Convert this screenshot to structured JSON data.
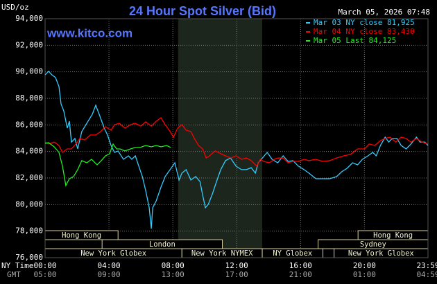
{
  "chart_data": {
    "type": "line",
    "title": "24 Hour Spot Silver (Bid)",
    "subtitle": "www.kitco.com",
    "date": "March 05, 2026 07:48",
    "y_label": "USD/oz",
    "x_label": "NY Time",
    "x2_label": "GMT",
    "xlim": [
      0,
      24
    ],
    "xticks": [
      {
        "value": 0,
        "label": "00:00"
      },
      {
        "value": 4,
        "label": "04:00"
      },
      {
        "value": 8,
        "label": "08:00"
      },
      {
        "value": 12,
        "label": "12:00"
      },
      {
        "value": 16,
        "label": "16:00"
      },
      {
        "value": 20,
        "label": "20:00"
      },
      {
        "value": 23.98,
        "label": "23:59"
      }
    ],
    "gmt_labels": [
      "05:00",
      "09:00",
      "13:00",
      "17:00",
      "21:00",
      "01:00",
      "04:59"
    ],
    "ylim": [
      76000,
      94000
    ],
    "yticks": [
      {
        "value": 76000,
        "label": "76,000"
      },
      {
        "value": 78000,
        "label": "78,000"
      },
      {
        "value": 80000,
        "label": "80,000"
      },
      {
        "value": 82000,
        "label": "82,000"
      },
      {
        "value": 84000,
        "label": "84,000"
      },
      {
        "value": 86000,
        "label": "86,000"
      },
      {
        "value": 88000,
        "label": "88,000"
      },
      {
        "value": 90000,
        "label": "90,000"
      },
      {
        "value": 92000,
        "label": "92,000"
      },
      {
        "value": 94000,
        "label": "94,000"
      }
    ],
    "grid": true,
    "shade": [
      8.33,
      13.6
    ],
    "session_rows": [
      [
        {
          "label": "Hong Kong",
          "start": 0,
          "end": 4.57
        },
        {
          "label": "Hong Kong",
          "start": 19.6,
          "end": 23.98
        }
      ],
      [
        {
          "label": "London",
          "start": 3.57,
          "end": 11.1
        },
        {
          "label": "Sydney",
          "start": 17.1,
          "end": 23.98
        }
      ],
      [
        {
          "label": "New York Globex",
          "start": 0,
          "end": 8.57
        },
        {
          "label": "New York NYMEX",
          "start": 8.57,
          "end": 13.6
        },
        {
          "label": "NY Globex",
          "start": 13.6,
          "end": 17.4
        },
        {
          "label": "New York Globex",
          "start": 18.1,
          "end": 23.98
        }
      ]
    ],
    "series": [
      {
        "name": "Mar 03 NY close 81,925",
        "color": "#33ccff",
        "x": [
          0,
          0.22,
          0.43,
          0.65,
          0.87,
          1,
          1.17,
          1.39,
          1.52,
          1.65,
          1.87,
          2.04,
          2.3,
          2.61,
          2.96,
          3.17,
          3.39,
          3.7,
          3.91,
          4.13,
          4.35,
          4.57,
          4.91,
          5.22,
          5.43,
          5.65,
          5.87,
          6.09,
          6.3,
          6.52,
          6.65,
          6.74,
          6.96,
          7.26,
          7.52,
          7.83,
          8.13,
          8.39,
          8.57,
          8.83,
          9.13,
          9.43,
          9.7,
          9.87,
          10.04,
          10.22,
          10.48,
          10.74,
          11,
          11.3,
          11.61,
          11.96,
          12.3,
          12.61,
          12.91,
          13.17,
          13.35,
          13.61,
          13.91,
          14.22,
          14.57,
          14.91,
          15.22,
          15.52,
          15.87,
          16.22,
          16.52,
          16.96,
          17.39,
          17.83,
          18.26,
          18.57,
          18.91,
          19.26,
          19.57,
          19.87,
          20.22,
          20.52,
          20.74,
          21,
          21.3,
          21.52,
          21.74,
          22.04,
          22.3,
          22.61,
          22.91,
          23.26,
          23.48,
          23.78,
          23.98
        ],
        "values": [
          89770,
          90040,
          89770,
          89570,
          88890,
          87580,
          87060,
          85760,
          86280,
          84710,
          84980,
          84190,
          85500,
          86120,
          86800,
          87480,
          86800,
          85760,
          85240,
          84450,
          83930,
          84040,
          83410,
          83670,
          83410,
          83670,
          82890,
          82110,
          81060,
          79760,
          78190,
          79760,
          80280,
          81320,
          82110,
          82630,
          83150,
          81850,
          82370,
          82630,
          81850,
          82110,
          81740,
          80700,
          79760,
          80020,
          80800,
          81740,
          82630,
          83310,
          83510,
          82890,
          82630,
          82630,
          82780,
          82370,
          83150,
          83510,
          83930,
          83410,
          83150,
          83670,
          83250,
          83310,
          82890,
          82630,
          82370,
          81950,
          81950,
          81950,
          82110,
          82470,
          82730,
          83150,
          82990,
          83410,
          83670,
          83930,
          83670,
          84450,
          85080,
          84710,
          84980,
          84980,
          84450,
          84190,
          84560,
          85080,
          84710,
          84710,
          84450
        ]
      },
      {
        "name": "Mar 04 NY close 83,430",
        "color": "#ff0000",
        "x": [
          0,
          0.22,
          0.57,
          0.87,
          1.09,
          1.39,
          1.65,
          1.96,
          2.17,
          2.48,
          2.83,
          3.17,
          3.48,
          3.78,
          4.13,
          4.35,
          4.65,
          5,
          5.35,
          5.65,
          6,
          6.3,
          6.65,
          6.96,
          7.26,
          7.52,
          7.83,
          8.04,
          8.3,
          8.57,
          8.83,
          9.13,
          9.35,
          9.61,
          9.87,
          10.09,
          10.3,
          10.65,
          11,
          11.3,
          11.65,
          11.96,
          12.3,
          12.61,
          12.91,
          13.26,
          13.48,
          13.7,
          14.04,
          14.35,
          14.57,
          14.91,
          15.22,
          15.52,
          15.87,
          16.22,
          16.52,
          16.96,
          17.39,
          17.83,
          18.26,
          18.7,
          19.13,
          19.57,
          20,
          20.3,
          20.65,
          21,
          21.3,
          21.61,
          21.96,
          22.3,
          22.61,
          22.91,
          23.26,
          23.61,
          23.98
        ],
        "values": [
          84710,
          84560,
          84710,
          84450,
          83930,
          84190,
          84190,
          84610,
          84980,
          84870,
          85240,
          85240,
          85500,
          85860,
          85600,
          86020,
          86120,
          85760,
          86020,
          86120,
          85910,
          86230,
          85910,
          86280,
          86540,
          86020,
          85500,
          85080,
          85760,
          86020,
          85600,
          85500,
          84980,
          84450,
          84190,
          83510,
          83670,
          84040,
          83830,
          83670,
          83510,
          83670,
          83410,
          83510,
          83310,
          82890,
          83410,
          83250,
          83150,
          83410,
          83510,
          83510,
          83150,
          83250,
          83250,
          83410,
          83310,
          83410,
          83250,
          83310,
          83510,
          83670,
          83780,
          84190,
          84190,
          84560,
          84450,
          84820,
          84980,
          85080,
          84710,
          85080,
          84980,
          84710,
          84980,
          84710,
          84560
        ]
      },
      {
        "name": "Mar 05 Last 84,125",
        "color": "#22ee22",
        "x": [
          0,
          0.22,
          0.57,
          0.87,
          1.09,
          1.3,
          1.52,
          1.78,
          2.04,
          2.3,
          2.61,
          2.91,
          3.26,
          3.52,
          3.78,
          4.04,
          4.26,
          4.48,
          4.7,
          5,
          5.35,
          5.65,
          5.96,
          6.3,
          6.65,
          6.96,
          7.26,
          7.61,
          7.87
        ],
        "values": [
          84610,
          84660,
          84350,
          83930,
          82890,
          81430,
          81950,
          82110,
          82630,
          83310,
          83150,
          83410,
          82990,
          83310,
          83670,
          83830,
          84560,
          84190,
          84190,
          84040,
          84190,
          84300,
          84300,
          84450,
          84350,
          84450,
          84350,
          84450,
          84300
        ]
      }
    ]
  }
}
